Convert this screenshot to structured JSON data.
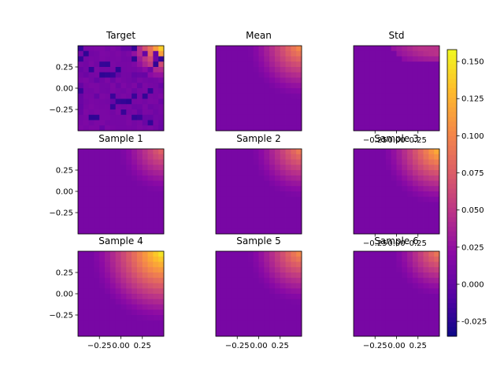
{
  "chart_data": {
    "type": "heatmap",
    "colormap": "plasma",
    "colorbar": {
      "range": [
        -0.035,
        0.158
      ],
      "ticks": [
        "-0.025",
        "0.000",
        "0.025",
        "0.050",
        "0.075",
        "0.100",
        "0.125",
        "0.150"
      ],
      "tick_values": [
        -0.025,
        0.0,
        0.025,
        0.05,
        0.075,
        0.1,
        0.125,
        0.15
      ]
    },
    "axis_range": {
      "x": [
        -0.5,
        0.5
      ],
      "y": [
        -0.5,
        0.5
      ]
    },
    "y_ticks": [
      "0.25",
      "0.00",
      "−0.25"
    ],
    "y_tick_values": [
      0.25,
      0.0,
      -0.25
    ],
    "x_ticks": [
      "−0.25",
      "0.00",
      "0.25"
    ],
    "x_tick_values": [
      -0.25,
      0.0,
      0.25
    ],
    "panels": [
      {
        "title": "Target",
        "kind": "noisy",
        "max": 0.155,
        "reach": 0.42
      },
      {
        "title": "Mean",
        "kind": "smooth",
        "max": 0.11,
        "reach": 0.62
      },
      {
        "title": "Std",
        "kind": "std",
        "max": 0.06,
        "reach": 0.0
      },
      {
        "title": "Sample 1",
        "kind": "smooth",
        "max": 0.085,
        "reach": 0.52
      },
      {
        "title": "Sample 2",
        "kind": "smooth",
        "max": 0.1,
        "reach": 0.58
      },
      {
        "title": "Sample 3",
        "kind": "smooth",
        "max": 0.13,
        "reach": 0.66
      },
      {
        "title": "Sample 4",
        "kind": "smooth",
        "max": 0.158,
        "reach": 0.85
      },
      {
        "title": "Sample 5",
        "kind": "smooth",
        "max": 0.11,
        "reach": 0.62
      },
      {
        "title": "Sample 6",
        "kind": "smooth",
        "max": 0.1,
        "reach": 0.54
      }
    ]
  }
}
